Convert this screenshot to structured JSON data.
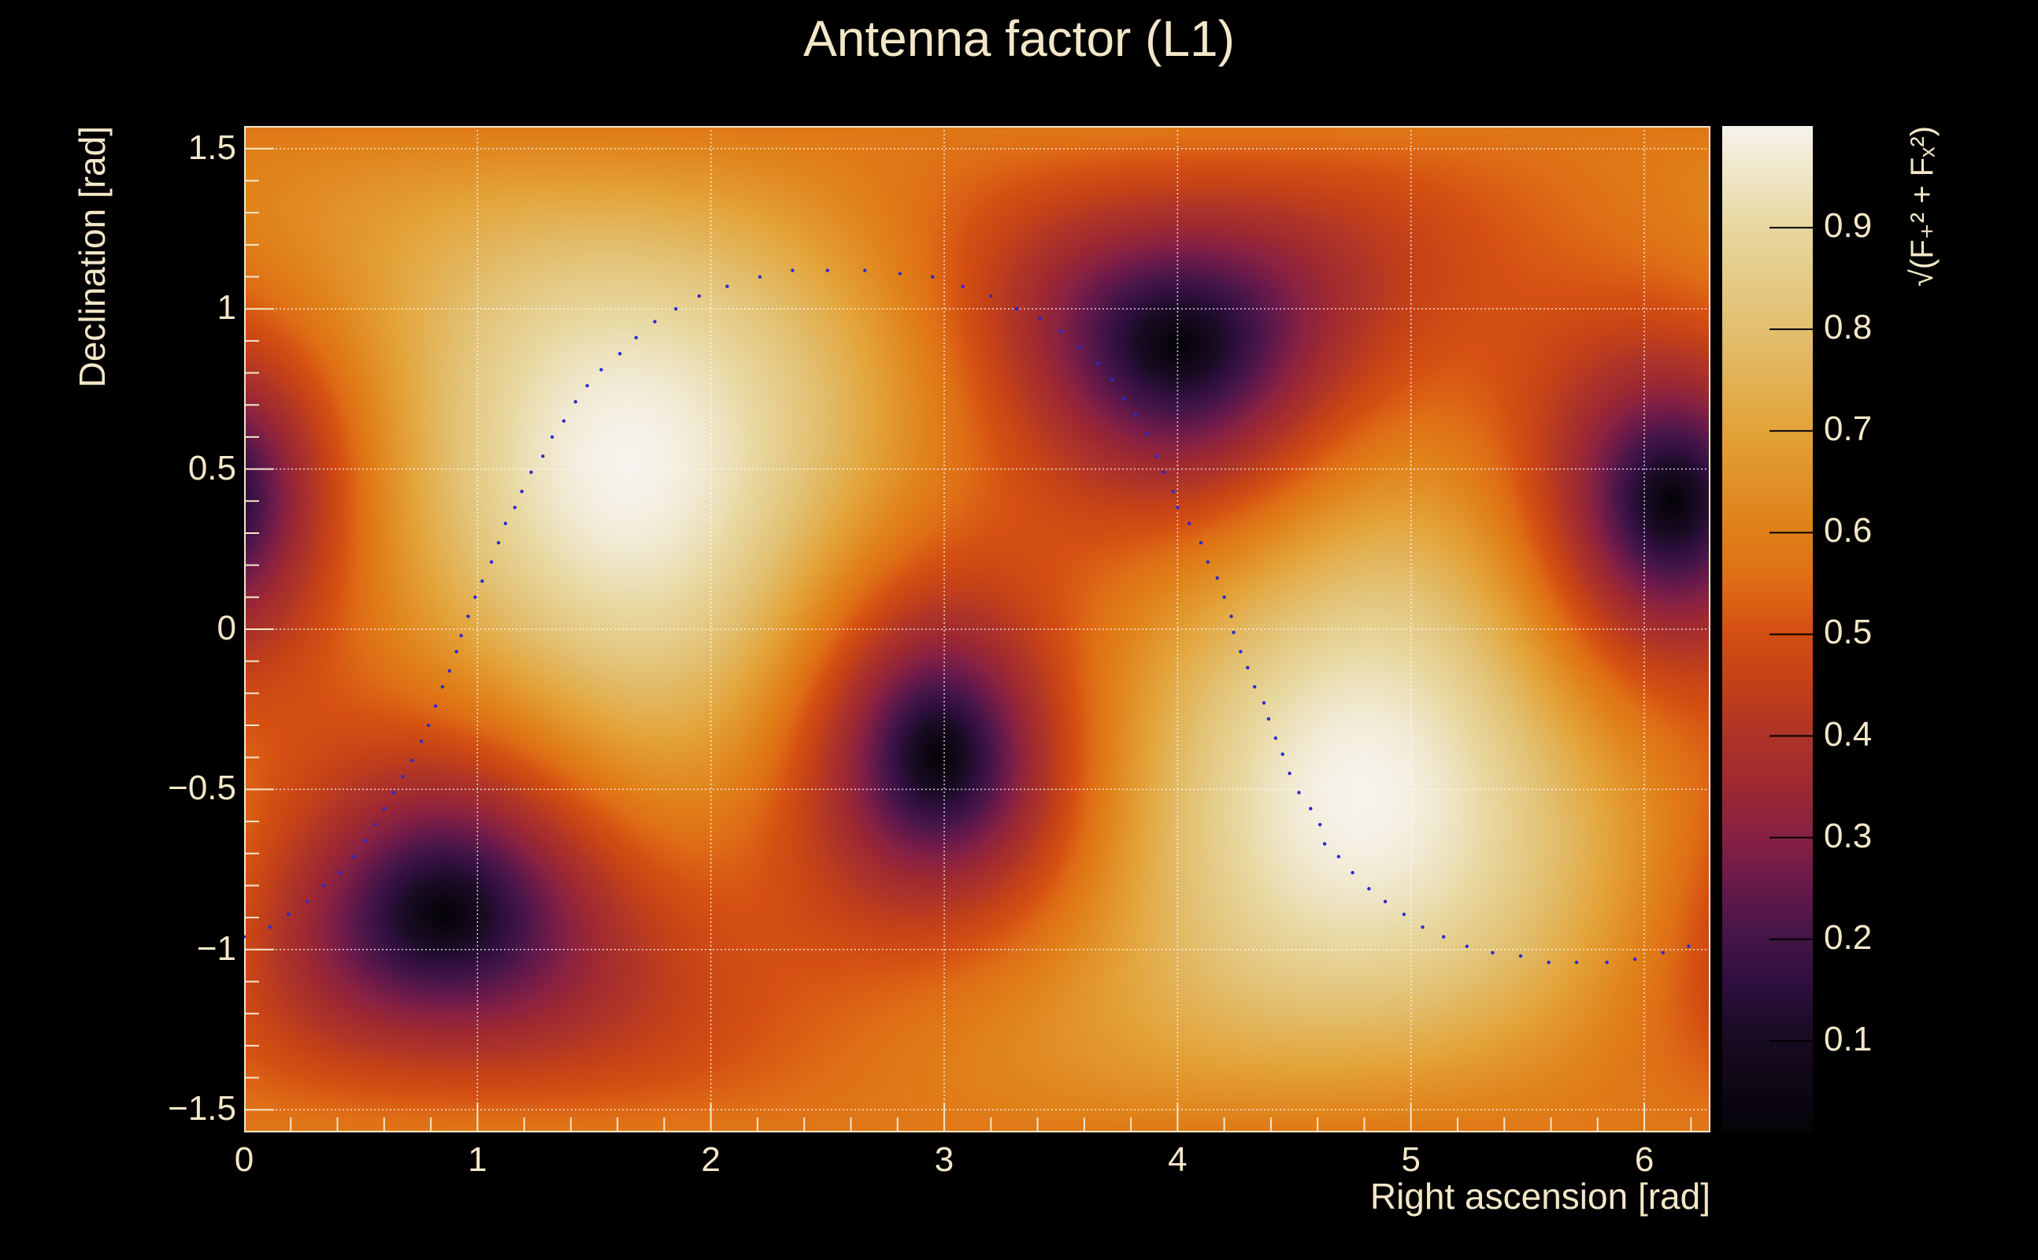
{
  "chart_data": {
    "type": "heatmap",
    "title": "Antenna factor (L1)",
    "xlabel": "Right ascension [rad]",
    "ylabel": "Declination [rad]",
    "zlabel": "√(F₊² + Fₓ²)",
    "xlim": [
      0,
      6.2832
    ],
    "ylim": [
      -1.5708,
      1.5708
    ],
    "zlim": [
      0.01,
      1.0
    ],
    "grid": true,
    "x_ticks": [
      "0",
      "1",
      "2",
      "3",
      "4",
      "5",
      "6"
    ],
    "y_ticks": [
      "−1.5",
      "−1",
      "−0.5",
      "0",
      "0.5",
      "1",
      "1.5"
    ],
    "z_ticks": [
      "0.1",
      "0.2",
      "0.3",
      "0.4",
      "0.5",
      "0.6",
      "0.7",
      "0.8",
      "0.9"
    ],
    "model": {
      "zenith": {
        "ra": 1.65,
        "dec": 0.52
      },
      "null_directions": [
        {
          "ra": 0.87,
          "dec": -0.88
        },
        {
          "ra": 2.98,
          "dec": -0.4
        },
        {
          "ra": 4.02,
          "dec": 0.87
        },
        {
          "ra": 6.13,
          "dec": 0.38
        }
      ],
      "maxima": [
        {
          "ra": 1.65,
          "dec": 0.52,
          "value": 1.0
        },
        {
          "ra": 4.79,
          "dec": -0.52,
          "value": 1.0
        }
      ]
    },
    "colormap": [
      [
        0.0,
        "#050308"
      ],
      [
        0.1,
        "#1a0c24"
      ],
      [
        0.15,
        "#300f40"
      ],
      [
        0.2,
        "#481648"
      ],
      [
        0.25,
        "#6a1a4a"
      ],
      [
        0.3,
        "#8a2242"
      ],
      [
        0.35,
        "#a02a30"
      ],
      [
        0.4,
        "#b03528"
      ],
      [
        0.45,
        "#c54218"
      ],
      [
        0.5,
        "#d55012"
      ],
      [
        0.55,
        "#df6e16"
      ],
      [
        0.6,
        "#e08018"
      ],
      [
        0.7,
        "#e3a43a"
      ],
      [
        0.8,
        "#e2c070"
      ],
      [
        0.9,
        "#e8d8a0"
      ],
      [
        1.0,
        "#f6f3ec"
      ]
    ],
    "track_color": "#2a2ad0",
    "track": [
      [
        0,
        -0.96
      ],
      [
        0.11,
        -0.93
      ],
      [
        0.19,
        -0.89
      ],
      [
        0.27,
        -0.85
      ],
      [
        0.34,
        -0.8
      ],
      [
        0.41,
        -0.76
      ],
      [
        0.47,
        -0.71
      ],
      [
        0.52,
        -0.66
      ],
      [
        0.56,
        -0.61
      ],
      [
        0.6,
        -0.56
      ],
      [
        0.64,
        -0.51
      ],
      [
        0.68,
        -0.46
      ],
      [
        0.72,
        -0.41
      ],
      [
        0.76,
        -0.35
      ],
      [
        0.79,
        -0.3
      ],
      [
        0.82,
        -0.24
      ],
      [
        0.85,
        -0.18
      ],
      [
        0.88,
        -0.13
      ],
      [
        0.91,
        -0.07
      ],
      [
        0.93,
        -0.02
      ],
      [
        0.96,
        0.04
      ],
      [
        0.99,
        0.1
      ],
      [
        1.02,
        0.15
      ],
      [
        1.06,
        0.21
      ],
      [
        1.09,
        0.27
      ],
      [
        1.12,
        0.33
      ],
      [
        1.16,
        0.38
      ],
      [
        1.19,
        0.43
      ],
      [
        1.23,
        0.49
      ],
      [
        1.28,
        0.54
      ],
      [
        1.32,
        0.6
      ],
      [
        1.37,
        0.65
      ],
      [
        1.42,
        0.71
      ],
      [
        1.47,
        0.76
      ],
      [
        1.53,
        0.81
      ],
      [
        1.61,
        0.86
      ],
      [
        1.68,
        0.91
      ],
      [
        1.76,
        0.96
      ],
      [
        1.85,
        1.0
      ],
      [
        1.95,
        1.04
      ],
      [
        2.07,
        1.07
      ],
      [
        2.21,
        1.1
      ],
      [
        2.35,
        1.12
      ],
      [
        2.5,
        1.12
      ],
      [
        2.66,
        1.12
      ],
      [
        2.81,
        1.11
      ],
      [
        2.95,
        1.1
      ],
      [
        3.08,
        1.07
      ],
      [
        3.2,
        1.04
      ],
      [
        3.31,
        1.0
      ],
      [
        3.41,
        0.97
      ],
      [
        3.5,
        0.93
      ],
      [
        3.58,
        0.88
      ],
      [
        3.66,
        0.83
      ],
      [
        3.72,
        0.78
      ],
      [
        3.77,
        0.72
      ],
      [
        3.82,
        0.67
      ],
      [
        3.87,
        0.61
      ],
      [
        3.91,
        0.54
      ],
      [
        3.94,
        0.49
      ],
      [
        3.98,
        0.43
      ],
      [
        4.0,
        0.38
      ],
      [
        4.05,
        0.33
      ],
      [
        4.1,
        0.27
      ],
      [
        4.13,
        0.21
      ],
      [
        4.17,
        0.16
      ],
      [
        4.2,
        0.1
      ],
      [
        4.23,
        0.04
      ],
      [
        4.24,
        -0.01
      ],
      [
        4.27,
        -0.07
      ],
      [
        4.3,
        -0.12
      ],
      [
        4.33,
        -0.18
      ],
      [
        4.37,
        -0.23
      ],
      [
        4.39,
        -0.28
      ],
      [
        4.42,
        -0.34
      ],
      [
        4.45,
        -0.39
      ],
      [
        4.48,
        -0.45
      ],
      [
        4.52,
        -0.51
      ],
      [
        4.57,
        -0.56
      ],
      [
        4.61,
        -0.61
      ],
      [
        4.63,
        -0.67
      ],
      [
        4.69,
        -0.71
      ],
      [
        4.75,
        -0.76
      ],
      [
        4.82,
        -0.81
      ],
      [
        4.89,
        -0.85
      ],
      [
        4.97,
        -0.89
      ],
      [
        5.05,
        -0.93
      ],
      [
        5.14,
        -0.96
      ],
      [
        5.24,
        -0.99
      ],
      [
        5.35,
        -1.01
      ],
      [
        5.47,
        -1.02
      ],
      [
        5.59,
        -1.04
      ],
      [
        5.71,
        -1.04
      ],
      [
        5.84,
        -1.04
      ],
      [
        5.96,
        -1.03
      ],
      [
        6.08,
        -1.01
      ],
      [
        6.19,
        -0.99
      ]
    ]
  }
}
